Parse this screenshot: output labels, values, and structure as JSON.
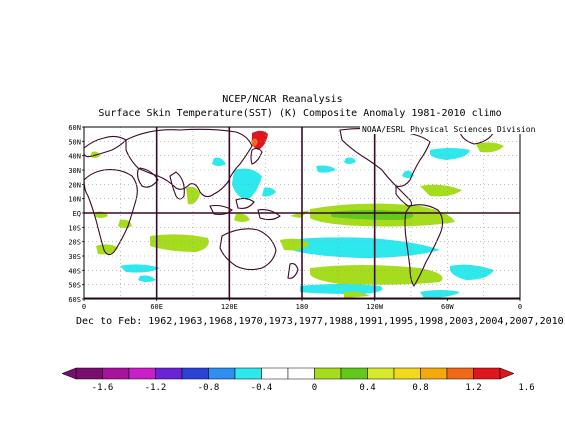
{
  "titles": {
    "line1": "NCEP/NCAR Reanalysis",
    "line2": "Surface Skin Temperature(SST) (K) Composite Anomaly 1981-2010 climo"
  },
  "credit": "NOAA/ESRL Physical Sciences Division",
  "caption": "Dec to Feb: 1962,1963,1968,1970,1973,1977,1988,1991,1995,1998,2003,2004,2007,2010",
  "lat_labels": [
    "60N",
    "50N",
    "40N",
    "30N",
    "20N",
    "10N",
    "EQ",
    "10S",
    "20S",
    "30S",
    "40S",
    "50S",
    "60S"
  ],
  "lon_labels": [
    "0",
    "60E",
    "120E",
    "180",
    "120W",
    "60W",
    "0"
  ],
  "colorbar": {
    "labels": [
      "-1.6",
      "-1.2",
      "-0.8",
      "-0.4",
      "0",
      "0.4",
      "0.8",
      "1.2",
      "1.6"
    ],
    "colors": [
      "#7a0d6e",
      "#a8129e",
      "#c820c6",
      "#6a23d6",
      "#2a43d6",
      "#2f8ef0",
      "#2de8ec",
      "#ffffff",
      "#ffffff",
      "#a6dc1e",
      "#63c81a",
      "#d7e82e",
      "#f2d81e",
      "#f5a80c",
      "#f06818",
      "#e0161e"
    ]
  },
  "anomaly_colors": {
    "cool": "#2de8ec",
    "warm": "#a6dc1e",
    "warm_mid": "#63c81a",
    "hot": "#e0161e",
    "orange": "#f06818"
  }
}
